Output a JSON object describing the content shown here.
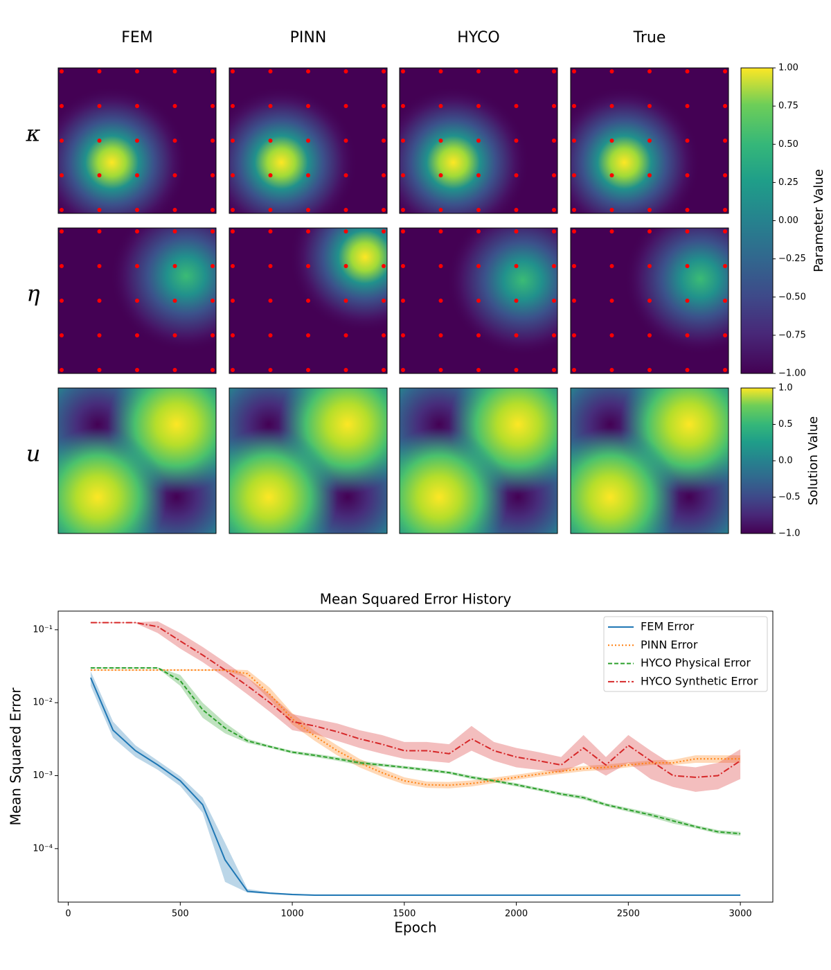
{
  "chart_data": [
    {
      "type": "heatmap-grid",
      "columns": [
        "FEM",
        "PINN",
        "HYCO",
        "True"
      ],
      "rows": [
        "κ",
        "η",
        "u"
      ],
      "colorbars": [
        {
          "label": "Parameter Value",
          "ylim": [
            -1,
            1
          ],
          "yticks": [
            {
              "value": -1,
              "label": "−1.00"
            },
            {
              "value": -0.75,
              "label": "−0.75"
            },
            {
              "value": -0.5,
              "label": "−0.50"
            },
            {
              "value": -0.25,
              "label": "−0.25"
            },
            {
              "value": 0,
              "label": "0.00"
            },
            0.25,
            {
              "value": 0.5,
              "label": "0.50"
            },
            0.75,
            {
              "value": 1,
              "label": "1.00"
            }
          ]
        },
        {
          "label": "Solution Value",
          "ylim": [
            -1,
            1
          ],
          "yticks": [
            {
              "value": -1,
              "label": "−1.0"
            },
            {
              "value": -0.5,
              "label": "−0.5"
            },
            {
              "value": 0,
              "label": "0.0"
            },
            0.5,
            {
              "value": 1,
              "label": "1.0"
            }
          ]
        }
      ]
    },
    {
      "type": "line",
      "title": "Mean Squared Error History",
      "x_label": "Epoch",
      "y_label": "Mean Squared Error",
      "log_y": true,
      "legend": "upper right",
      "xlim": [
        -45,
        3145
      ],
      "ylim": [
        1.85e-05,
        0.18
      ],
      "xticks": [
        0,
        500,
        1000,
        1500,
        2000,
        2500,
        3000
      ],
      "yticks": [
        {
          "value": 0.0001,
          "label": "10⁻⁴"
        },
        {
          "value": 0.001,
          "label": "10⁻³"
        },
        {
          "value": 0.01,
          "label": "10⁻²"
        },
        {
          "value": 0.1,
          "label": "10⁻¹"
        }
      ],
      "x": [
        100,
        200,
        300,
        400,
        500,
        600,
        700,
        800,
        900,
        1000,
        1100,
        1200,
        1300,
        1400,
        1500,
        1600,
        1700,
        1800,
        1900,
        2000,
        2100,
        2200,
        2300,
        2400,
        2500,
        2600,
        2700,
        2800,
        2900,
        3000
      ],
      "series": [
        {
          "name": "FEM Error",
          "color": "#1f77b4",
          "linestyle": "solid",
          "values": [
            0.022,
            0.0042,
            0.0022,
            0.0014,
            0.00085,
            0.0004,
            7e-05,
            2.6e-05,
            2.45e-05,
            2.35e-05,
            2.3e-05,
            2.3e-05,
            2.3e-05,
            2.3e-05,
            2.3e-05,
            2.3e-05,
            2.3e-05,
            2.3e-05,
            2.3e-05,
            2.3e-05,
            2.3e-05,
            2.3e-05,
            2.3e-05,
            2.3e-05,
            2.3e-05,
            2.3e-05,
            2.3e-05,
            2.3e-05,
            2.3e-05,
            2.3e-05
          ],
          "lower": [
            0.017,
            0.0033,
            0.0018,
            0.0012,
            0.00072,
            0.00031,
            3.5e-05,
            2.5e-05,
            2.38e-05,
            2.29e-05,
            2.25e-05,
            2.25e-05,
            2.25e-05,
            2.25e-05,
            2.25e-05,
            2.25e-05,
            2.25e-05,
            2.25e-05,
            2.25e-05,
            2.25e-05,
            2.25e-05,
            2.25e-05,
            2.25e-05,
            2.25e-05,
            2.25e-05,
            2.25e-05,
            2.25e-05,
            2.25e-05,
            2.25e-05,
            2.25e-05
          ],
          "upper": [
            0.027,
            0.0055,
            0.0026,
            0.0016,
            0.00098,
            0.0005,
            0.00012,
            2.8e-05,
            2.52e-05,
            2.41e-05,
            2.35e-05,
            2.35e-05,
            2.35e-05,
            2.35e-05,
            2.35e-05,
            2.35e-05,
            2.35e-05,
            2.35e-05,
            2.35e-05,
            2.35e-05,
            2.35e-05,
            2.35e-05,
            2.35e-05,
            2.35e-05,
            2.35e-05,
            2.35e-05,
            2.35e-05,
            2.35e-05,
            2.35e-05,
            2.35e-05
          ]
        },
        {
          "name": "PINN Error",
          "color": "#ff7f0e",
          "linestyle": "dotted",
          "values": [
            0.028,
            0.028,
            0.028,
            0.028,
            0.028,
            0.028,
            0.028,
            0.025,
            0.013,
            0.006,
            0.0035,
            0.0022,
            0.0015,
            0.0011,
            0.00085,
            0.00075,
            0.00074,
            0.00078,
            0.00086,
            0.00095,
            0.00105,
            0.00115,
            0.00125,
            0.0013,
            0.0014,
            0.0015,
            0.0015,
            0.0017,
            0.0017,
            0.0017
          ],
          "lower": [
            0.0275,
            0.0275,
            0.0275,
            0.0275,
            0.0275,
            0.0275,
            0.0272,
            0.022,
            0.011,
            0.005,
            0.003,
            0.0019,
            0.0013,
            0.00097,
            0.00076,
            0.00068,
            0.00067,
            0.00071,
            0.00079,
            0.00088,
            0.00097,
            0.00106,
            0.00115,
            0.0012,
            0.0013,
            0.0014,
            0.0014,
            0.0015,
            0.0015,
            0.0015
          ],
          "upper": [
            0.0285,
            0.0285,
            0.0285,
            0.0285,
            0.0285,
            0.0285,
            0.0288,
            0.028,
            0.016,
            0.0072,
            0.0041,
            0.0026,
            0.0017,
            0.00125,
            0.00095,
            0.00083,
            0.00082,
            0.00086,
            0.00094,
            0.00103,
            0.00114,
            0.00125,
            0.00136,
            0.00142,
            0.00152,
            0.00162,
            0.00165,
            0.0019,
            0.0019,
            0.0019
          ]
        },
        {
          "name": "HYCO Physical Error",
          "color": "#2ca02c",
          "linestyle": "dashed",
          "values": [
            0.03,
            0.03,
            0.03,
            0.03,
            0.02,
            0.008,
            0.0045,
            0.003,
            0.0025,
            0.0021,
            0.0019,
            0.0017,
            0.0015,
            0.0014,
            0.0013,
            0.0012,
            0.0011,
            0.00095,
            0.00085,
            0.00075,
            0.00065,
            0.00056,
            0.0005,
            0.0004,
            0.00034,
            0.00029,
            0.00024,
            0.0002,
            0.00017,
            0.00016
          ],
          "lower": [
            0.0295,
            0.0295,
            0.0295,
            0.0295,
            0.017,
            0.0062,
            0.0038,
            0.0028,
            0.0024,
            0.002,
            0.0018,
            0.0016,
            0.0014,
            0.00133,
            0.00124,
            0.00114,
            0.00105,
            0.0009,
            0.00081,
            0.00071,
            0.00062,
            0.00053,
            0.00047,
            0.00038,
            0.00032,
            0.00027,
            0.00022,
            0.00019,
            0.00016,
            0.00015
          ],
          "upper": [
            0.0305,
            0.0305,
            0.0305,
            0.0305,
            0.024,
            0.01,
            0.0053,
            0.0032,
            0.0026,
            0.0022,
            0.002,
            0.0018,
            0.0016,
            0.00147,
            0.00136,
            0.00126,
            0.00115,
            0.001,
            0.00089,
            0.00079,
            0.00068,
            0.00059,
            0.00053,
            0.00042,
            0.00036,
            0.00031,
            0.00026,
            0.00021,
            0.00018,
            0.00017
          ]
        },
        {
          "name": "HYCO Synthetic Error",
          "color": "#d62728",
          "linestyle": "dashdot",
          "values": [
            0.125,
            0.125,
            0.125,
            0.11,
            0.07,
            0.045,
            0.028,
            0.017,
            0.01,
            0.0055,
            0.0048,
            0.004,
            0.0032,
            0.0027,
            0.0022,
            0.0022,
            0.002,
            0.0032,
            0.0022,
            0.0018,
            0.0016,
            0.0014,
            0.0024,
            0.0014,
            0.0026,
            0.0016,
            0.001,
            0.00095,
            0.001,
            0.0016
          ],
          "lower": [
            0.123,
            0.123,
            0.123,
            0.09,
            0.055,
            0.036,
            0.022,
            0.013,
            0.0075,
            0.0042,
            0.0037,
            0.003,
            0.0024,
            0.002,
            0.0017,
            0.0016,
            0.0015,
            0.0022,
            0.0016,
            0.0013,
            0.0012,
            0.0011,
            0.0015,
            0.001,
            0.0015,
            0.0009,
            0.0007,
            0.0006,
            0.00065,
            0.0009
          ],
          "upper": [
            0.127,
            0.127,
            0.127,
            0.13,
            0.09,
            0.058,
            0.036,
            0.022,
            0.013,
            0.007,
            0.006,
            0.0052,
            0.0042,
            0.0036,
            0.0029,
            0.0029,
            0.0027,
            0.0048,
            0.0029,
            0.0024,
            0.0021,
            0.0018,
            0.0036,
            0.0018,
            0.0036,
            0.0022,
            0.0014,
            0.0013,
            0.0015,
            0.0023
          ]
        }
      ]
    }
  ]
}
